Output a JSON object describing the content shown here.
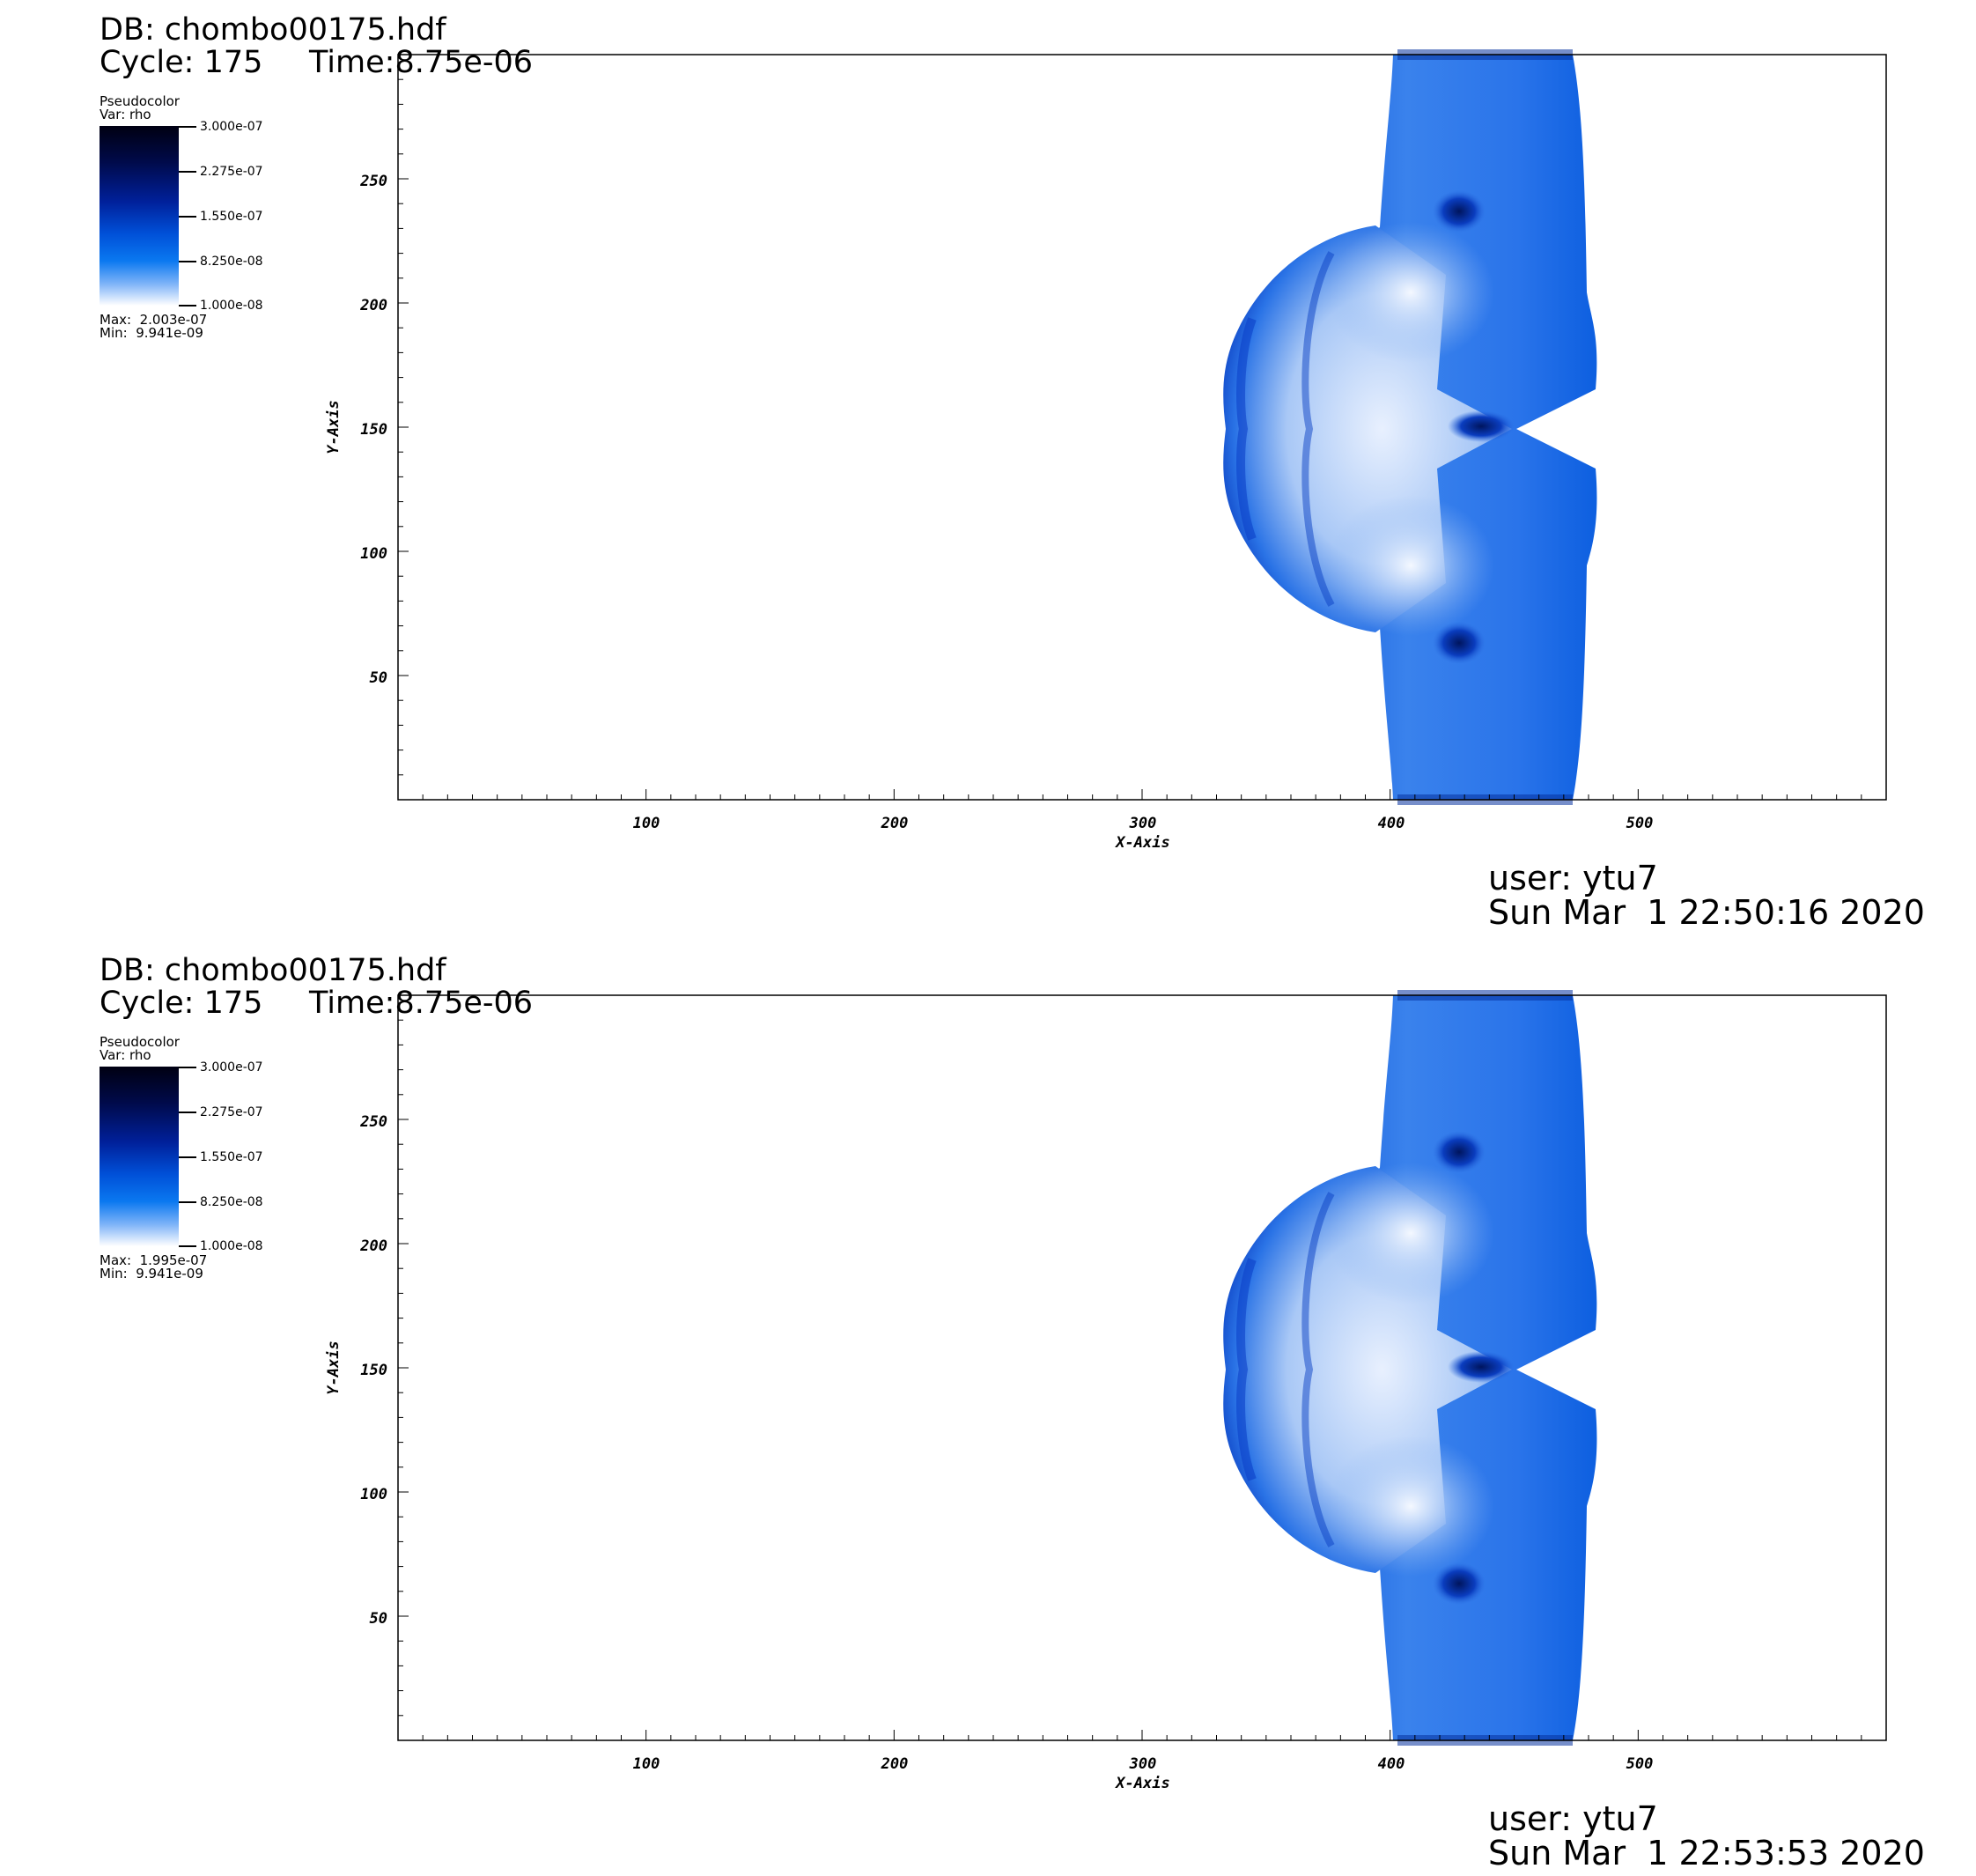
{
  "panels": [
    {
      "db": "DB: chombo00175.hdf",
      "cycle": "Cycle: 175",
      "time": "Time:8.75e-06",
      "legend": {
        "plot_type": "Pseudocolor",
        "var": "Var: rho",
        "ticks": [
          "3.000e-07",
          "2.275e-07",
          "1.550e-07",
          "8.250e-08",
          "1.000e-08"
        ],
        "max": "Max:  2.003e-07",
        "min": "Min:  9.941e-09"
      },
      "axes": {
        "xlabel": "X-Axis",
        "ylabel": "Y-Axis",
        "xticks": [
          "100",
          "200",
          "300",
          "400",
          "500"
        ],
        "yticks": [
          "50",
          "100",
          "150",
          "200",
          "250"
        ]
      },
      "user": "user: ytu7",
      "date": "Sun Mar  1 22:50:16 2020"
    },
    {
      "db": "DB: chombo00175.hdf",
      "cycle": "Cycle: 175",
      "time": "Time:8.75e-06",
      "legend": {
        "plot_type": "Pseudocolor",
        "var": "Var: rho",
        "ticks": [
          "3.000e-07",
          "2.275e-07",
          "1.550e-07",
          "8.250e-08",
          "1.000e-08"
        ],
        "max": "Max:  1.995e-07",
        "min": "Min:  9.941e-09"
      },
      "axes": {
        "xlabel": "X-Axis",
        "ylabel": "Y-Axis",
        "xticks": [
          "100",
          "200",
          "300",
          "400",
          "500"
        ],
        "yticks": [
          "50",
          "100",
          "150",
          "200",
          "250"
        ]
      },
      "user": "user: ytu7",
      "date": "Sun Mar  1 22:53:53 2020"
    }
  ]
}
